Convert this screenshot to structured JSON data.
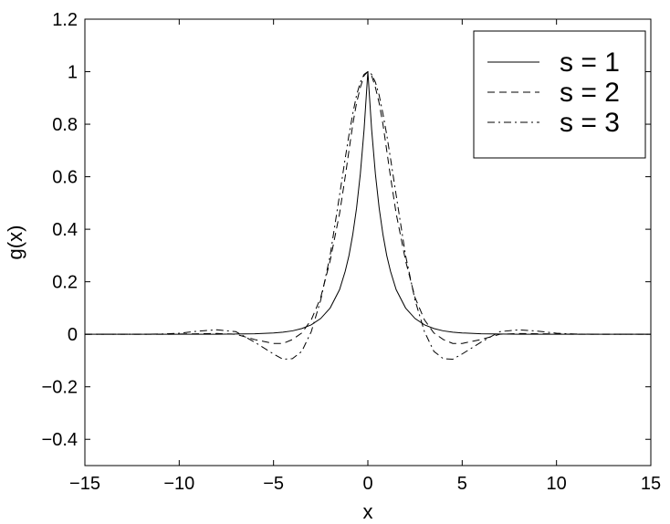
{
  "chart_data": {
    "type": "line",
    "title": "",
    "xlabel": "x",
    "ylabel": "g(x)",
    "xlim": [
      -15,
      15
    ],
    "ylim": [
      -0.5,
      1.2
    ],
    "xticks": [
      -15,
      -10,
      -5,
      0,
      5,
      10,
      15
    ],
    "xtick_labels": [
      "−15",
      "−10",
      "−5",
      "0",
      "5",
      "10",
      "15"
    ],
    "yticks": [
      -0.4,
      -0.2,
      0,
      0.2,
      0.4,
      0.6,
      0.8,
      1,
      1.2
    ],
    "ytick_labels": [
      "−0.4",
      "−0.2",
      "0",
      "0.2",
      "0.4",
      "0.6",
      "0.8",
      "1",
      "1.2"
    ],
    "grid": false,
    "legend_position": "top-right",
    "x": [
      -15,
      -14,
      -13,
      -12,
      -11,
      -10,
      -9,
      -8,
      -7,
      -6,
      -5,
      -4.5,
      -4,
      -3.5,
      -3,
      -2.5,
      -2,
      -1.5,
      -1.2,
      -1,
      -0.8,
      -0.6,
      -0.4,
      -0.2,
      0,
      0.2,
      0.4,
      0.6,
      0.8,
      1,
      1.2,
      1.5,
      2,
      2.5,
      3,
      3.5,
      4,
      4.5,
      5,
      6,
      7,
      8,
      9,
      10,
      11,
      12,
      13,
      14,
      15
    ],
    "series": [
      {
        "name": "s = 1",
        "style": "solid",
        "values": [
          0.0,
          0.0,
          0.0,
          0.0,
          0.0,
          0.0,
          0.0,
          0.0,
          0.001,
          0.002,
          0.005,
          0.008,
          0.013,
          0.022,
          0.036,
          0.06,
          0.1,
          0.17,
          0.24,
          0.3,
          0.38,
          0.48,
          0.61,
          0.78,
          1.0,
          0.78,
          0.61,
          0.48,
          0.38,
          0.3,
          0.24,
          0.17,
          0.1,
          0.06,
          0.036,
          0.022,
          0.013,
          0.008,
          0.005,
          0.002,
          0.001,
          0.0,
          0.0,
          0.0,
          0.0,
          0.0,
          0.0,
          0.0,
          0.0
        ]
      },
      {
        "name": "s = 2",
        "style": "dashed",
        "values": [
          0.0,
          0.0,
          0.0,
          0.0,
          0.0,
          0.001,
          0.002,
          0.003,
          0.0,
          -0.02,
          -0.035,
          -0.035,
          -0.02,
          0.005,
          0.055,
          0.14,
          0.28,
          0.46,
          0.6,
          0.7,
          0.8,
          0.88,
          0.94,
          0.985,
          1.0,
          0.985,
          0.94,
          0.88,
          0.8,
          0.7,
          0.6,
          0.46,
          0.28,
          0.14,
          0.055,
          0.005,
          -0.02,
          -0.035,
          -0.035,
          -0.02,
          0.0,
          0.003,
          0.002,
          0.001,
          0.0,
          0.0,
          0.0,
          0.0,
          0.0
        ]
      },
      {
        "name": "s = 3",
        "style": "dashdot",
        "values": [
          0.0,
          0.0,
          0.0,
          0.0,
          0.001,
          0.004,
          0.012,
          0.017,
          0.01,
          -0.03,
          -0.075,
          -0.095,
          -0.093,
          -0.065,
          0.01,
          0.13,
          0.3,
          0.53,
          0.67,
          0.76,
          0.84,
          0.91,
          0.96,
          0.99,
          1.0,
          0.99,
          0.96,
          0.91,
          0.84,
          0.76,
          0.67,
          0.53,
          0.3,
          0.13,
          0.01,
          -0.065,
          -0.093,
          -0.095,
          -0.075,
          -0.03,
          0.01,
          0.017,
          0.012,
          0.004,
          0.001,
          0.0,
          0.0,
          0.0,
          0.0
        ]
      }
    ]
  }
}
